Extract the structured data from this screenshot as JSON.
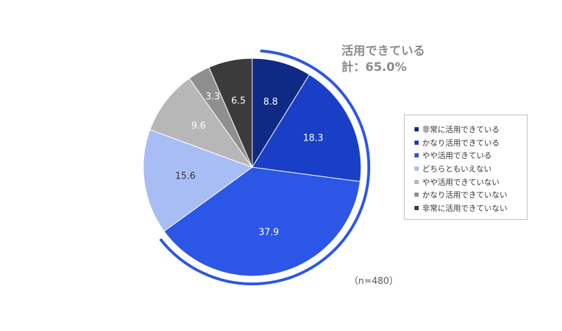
{
  "chart_data": {
    "type": "pie",
    "categories": [
      "非常に活用できている",
      "かなり活用できている",
      "やや活用できている",
      "どちらともいえない",
      "やや活用できていない",
      "かなり活用できていない",
      "非常に活用できていない"
    ],
    "values": [
      8.8,
      18.3,
      37.9,
      15.6,
      9.6,
      3.3,
      6.5
    ],
    "colors": [
      "#0e2a86",
      "#1a3fc7",
      "#2b56e6",
      "#a9bdf5",
      "#b7b7b7",
      "#8f8f8f",
      "#3b3b3b"
    ],
    "label_colors": [
      "#ffffff",
      "#ffffff",
      "#ffffff",
      "#333333",
      "#ffffff",
      "#ffffff",
      "#ffffff"
    ],
    "start_angle_deg": 0,
    "direction": "clockwise",
    "legend_position": "right",
    "highlight_arc_color": "#2b56e6"
  },
  "callout": {
    "line1": "活用できている",
    "line2": "計：65.0%"
  },
  "sample_size": "（n=480）"
}
